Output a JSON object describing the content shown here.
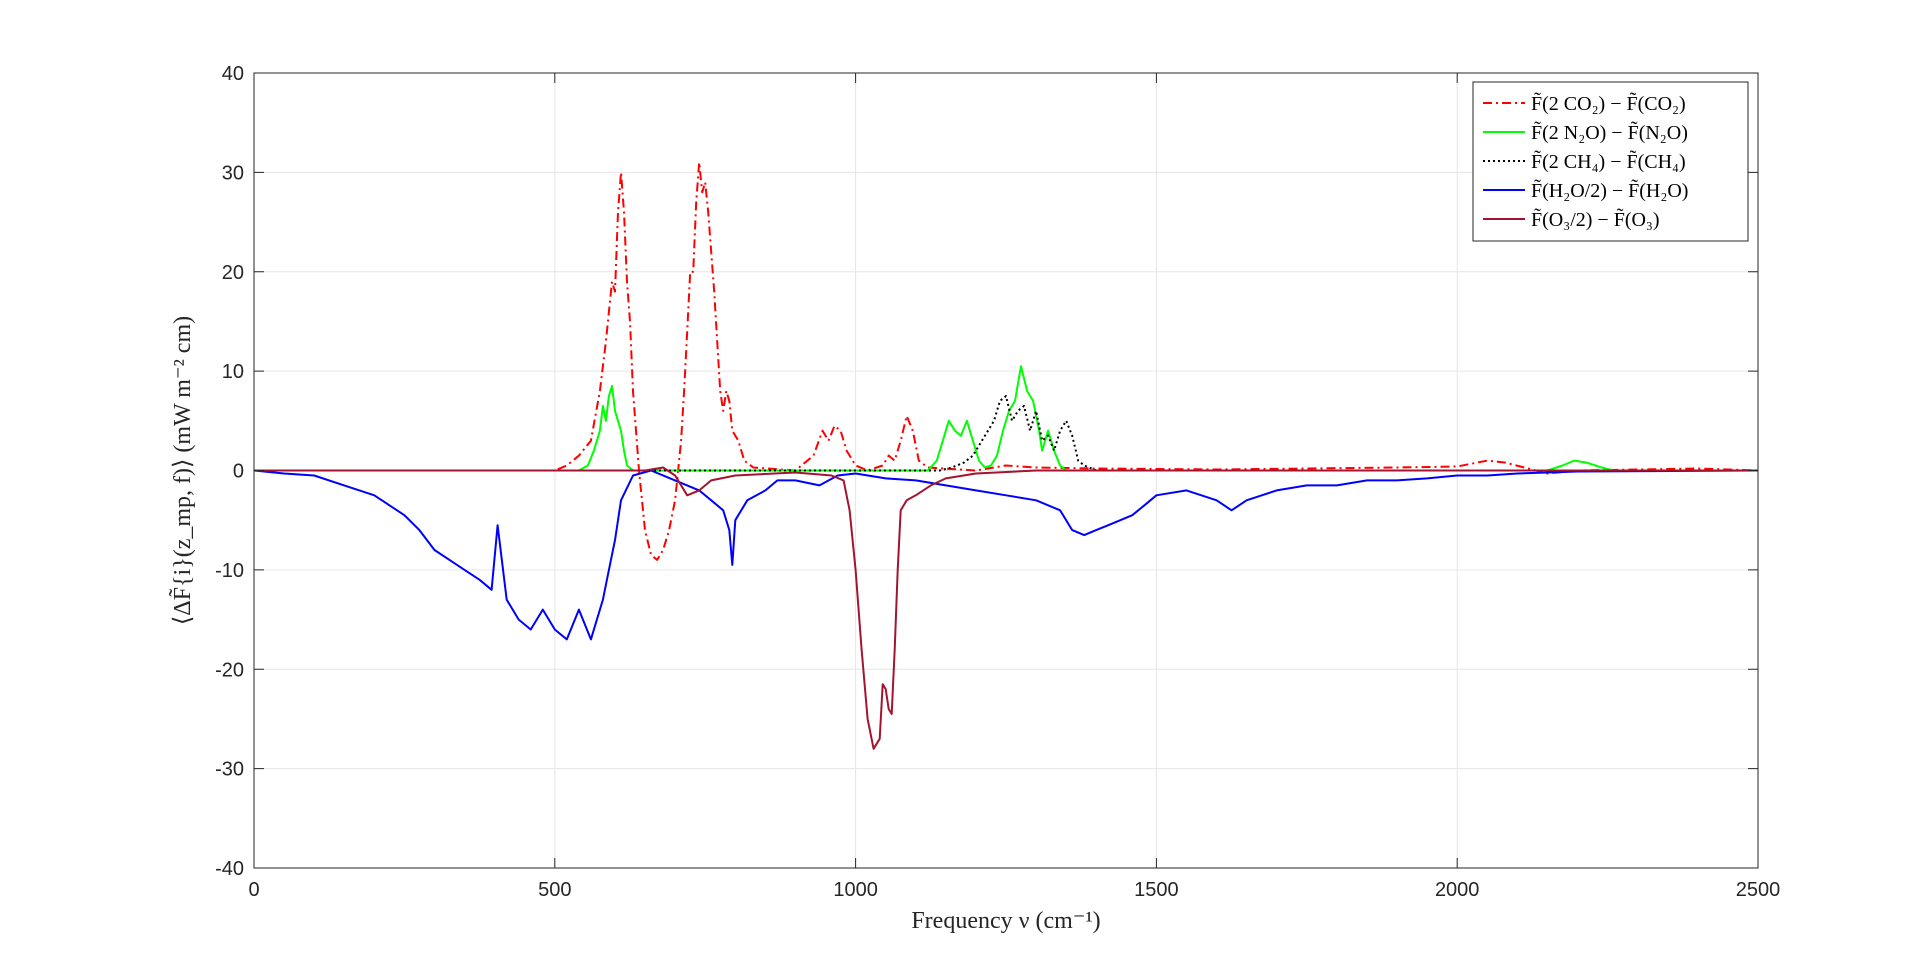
{
  "chart_data": {
    "type": "line",
    "xlabel": "Frequency ν (cm⁻¹)",
    "ylabel": "⟨ΔF̃{i}(z_mp, f)⟩   (mW m⁻² cm)",
    "xlim": [
      0,
      2500
    ],
    "ylim": [
      -40,
      40
    ],
    "xticks": [
      0,
      500,
      1000,
      1500,
      2000,
      2500
    ],
    "yticks": [
      -40,
      -30,
      -20,
      -10,
      0,
      10,
      20,
      30,
      40
    ],
    "xtick_labels": [
      "0",
      "500",
      "1000",
      "1500",
      "2000",
      "2500"
    ],
    "ytick_labels": [
      "-40",
      "-30",
      "-20",
      "-10",
      "0",
      "10",
      "20",
      "30",
      "40"
    ],
    "grid": true,
    "legend_position": "top-right",
    "series": [
      {
        "name": "F̃(2 CO₂) − F̃(CO₂)",
        "color": "#ff0000",
        "dash": "dash-dot",
        "points": [
          [
            0,
            0
          ],
          [
            500,
            0
          ],
          [
            520,
            0.5
          ],
          [
            540,
            1.5
          ],
          [
            560,
            3
          ],
          [
            575,
            8
          ],
          [
            585,
            13
          ],
          [
            595,
            19
          ],
          [
            600,
            18
          ],
          [
            605,
            26
          ],
          [
            610,
            30
          ],
          [
            615,
            26
          ],
          [
            620,
            19
          ],
          [
            625,
            15
          ],
          [
            630,
            8
          ],
          [
            640,
            0
          ],
          [
            650,
            -6
          ],
          [
            660,
            -8.5
          ],
          [
            670,
            -9
          ],
          [
            680,
            -8
          ],
          [
            690,
            -6
          ],
          [
            700,
            -3
          ],
          [
            710,
            3
          ],
          [
            715,
            8
          ],
          [
            720,
            14
          ],
          [
            725,
            20
          ],
          [
            730,
            20
          ],
          [
            735,
            27
          ],
          [
            740,
            31
          ],
          [
            745,
            28
          ],
          [
            750,
            29
          ],
          [
            755,
            26
          ],
          [
            760,
            22
          ],
          [
            765,
            18
          ],
          [
            770,
            13
          ],
          [
            775,
            8
          ],
          [
            780,
            6
          ],
          [
            785,
            8
          ],
          [
            790,
            7
          ],
          [
            795,
            4
          ],
          [
            805,
            3
          ],
          [
            815,
            1
          ],
          [
            830,
            0.3
          ],
          [
            900,
            0
          ],
          [
            930,
            1.5
          ],
          [
            945,
            4
          ],
          [
            955,
            3
          ],
          [
            965,
            4.5
          ],
          [
            975,
            4
          ],
          [
            985,
            2
          ],
          [
            1000,
            0.5
          ],
          [
            1020,
            0
          ],
          [
            1045,
            0.5
          ],
          [
            1055,
            1.5
          ],
          [
            1065,
            1
          ],
          [
            1075,
            3
          ],
          [
            1085,
            5.5
          ],
          [
            1095,
            4
          ],
          [
            1105,
            1
          ],
          [
            1120,
            0.3
          ],
          [
            1200,
            0
          ],
          [
            1250,
            0.5
          ],
          [
            1300,
            0.3
          ],
          [
            1400,
            0.2
          ],
          [
            1600,
            0.1
          ],
          [
            1900,
            0.3
          ],
          [
            2000,
            0.4
          ],
          [
            2050,
            1
          ],
          [
            2080,
            0.8
          ],
          [
            2150,
            -0.3
          ],
          [
            2200,
            0
          ],
          [
            2400,
            0.2
          ],
          [
            2500,
            0
          ]
        ]
      },
      {
        "name": "F̃(2 N₂O) − F̃(N₂O)",
        "color": "#00ff00",
        "dash": "solid",
        "points": [
          [
            0,
            0
          ],
          [
            540,
            0
          ],
          [
            555,
            0.5
          ],
          [
            565,
            2
          ],
          [
            575,
            4
          ],
          [
            580,
            6.5
          ],
          [
            585,
            5
          ],
          [
            590,
            7.5
          ],
          [
            595,
            8.5
          ],
          [
            600,
            6
          ],
          [
            610,
            4
          ],
          [
            615,
            2
          ],
          [
            620,
            0.5
          ],
          [
            630,
            0
          ],
          [
            1120,
            0
          ],
          [
            1135,
            1
          ],
          [
            1145,
            3
          ],
          [
            1155,
            5
          ],
          [
            1165,
            4
          ],
          [
            1175,
            3.5
          ],
          [
            1185,
            5
          ],
          [
            1195,
            3
          ],
          [
            1205,
            1
          ],
          [
            1215,
            0.3
          ],
          [
            1225,
            0.5
          ],
          [
            1235,
            1.5
          ],
          [
            1245,
            4
          ],
          [
            1255,
            6
          ],
          [
            1265,
            7
          ],
          [
            1275,
            10.5
          ],
          [
            1285,
            8
          ],
          [
            1295,
            7
          ],
          [
            1305,
            4
          ],
          [
            1310,
            2
          ],
          [
            1320,
            4
          ],
          [
            1330,
            2
          ],
          [
            1340,
            0.5
          ],
          [
            1350,
            0
          ],
          [
            2150,
            0
          ],
          [
            2175,
            0.5
          ],
          [
            2195,
            1
          ],
          [
            2215,
            0.8
          ],
          [
            2240,
            0.3
          ],
          [
            2260,
            0
          ],
          [
            2500,
            0
          ]
        ]
      },
      {
        "name": "F̃(2 CH₄) − F̃(CH₄)",
        "color": "#000000",
        "dash": "dotted",
        "points": [
          [
            0,
            0
          ],
          [
            1140,
            0
          ],
          [
            1160,
            0.3
          ],
          [
            1180,
            0.8
          ],
          [
            1195,
            1.5
          ],
          [
            1210,
            3
          ],
          [
            1220,
            4
          ],
          [
            1230,
            5
          ],
          [
            1240,
            7
          ],
          [
            1250,
            7.5
          ],
          [
            1260,
            5
          ],
          [
            1270,
            6
          ],
          [
            1280,
            6.5
          ],
          [
            1290,
            4
          ],
          [
            1300,
            6
          ],
          [
            1310,
            3
          ],
          [
            1320,
            3.5
          ],
          [
            1330,
            2
          ],
          [
            1340,
            4
          ],
          [
            1350,
            5
          ],
          [
            1360,
            3.5
          ],
          [
            1370,
            1
          ],
          [
            1380,
            0.5
          ],
          [
            1400,
            0
          ],
          [
            2500,
            0
          ]
        ]
      },
      {
        "name": "F̃(H₂O/2) − F̃(H₂O)",
        "color": "#0000ff",
        "dash": "solid",
        "points": [
          [
            0,
            0
          ],
          [
            50,
            -0.3
          ],
          [
            100,
            -0.5
          ],
          [
            150,
            -1.5
          ],
          [
            200,
            -2.5
          ],
          [
            225,
            -3.5
          ],
          [
            250,
            -4.5
          ],
          [
            275,
            -6
          ],
          [
            300,
            -8
          ],
          [
            325,
            -9
          ],
          [
            350,
            -10
          ],
          [
            375,
            -11
          ],
          [
            395,
            -12
          ],
          [
            405,
            -5.5
          ],
          [
            420,
            -13
          ],
          [
            440,
            -15
          ],
          [
            460,
            -16
          ],
          [
            480,
            -14
          ],
          [
            500,
            -16
          ],
          [
            520,
            -17
          ],
          [
            540,
            -14
          ],
          [
            560,
            -17
          ],
          [
            570,
            -15
          ],
          [
            580,
            -13
          ],
          [
            590,
            -10
          ],
          [
            600,
            -7
          ],
          [
            610,
            -3
          ],
          [
            630,
            -0.5
          ],
          [
            660,
            0
          ],
          [
            700,
            -1
          ],
          [
            720,
            -1.5
          ],
          [
            740,
            -2
          ],
          [
            760,
            -3
          ],
          [
            780,
            -4
          ],
          [
            790,
            -6
          ],
          [
            795,
            -9.5
          ],
          [
            800,
            -5
          ],
          [
            820,
            -3
          ],
          [
            850,
            -2
          ],
          [
            870,
            -1
          ],
          [
            900,
            -1
          ],
          [
            940,
            -1.5
          ],
          [
            970,
            -0.5
          ],
          [
            1000,
            -0.3
          ],
          [
            1050,
            -0.8
          ],
          [
            1100,
            -1
          ],
          [
            1150,
            -1.5
          ],
          [
            1200,
            -2
          ],
          [
            1250,
            -2.5
          ],
          [
            1300,
            -3
          ],
          [
            1340,
            -4
          ],
          [
            1360,
            -6
          ],
          [
            1380,
            -6.5
          ],
          [
            1400,
            -6
          ],
          [
            1420,
            -5.5
          ],
          [
            1440,
            -5
          ],
          [
            1460,
            -4.5
          ],
          [
            1480,
            -3.5
          ],
          [
            1500,
            -2.5
          ],
          [
            1550,
            -2
          ],
          [
            1600,
            -3
          ],
          [
            1625,
            -4
          ],
          [
            1650,
            -3
          ],
          [
            1700,
            -2
          ],
          [
            1750,
            -1.5
          ],
          [
            1800,
            -1.5
          ],
          [
            1850,
            -1
          ],
          [
            1900,
            -1
          ],
          [
            1950,
            -0.8
          ],
          [
            2000,
            -0.5
          ],
          [
            2050,
            -0.5
          ],
          [
            2100,
            -0.3
          ],
          [
            2150,
            -0.2
          ],
          [
            2200,
            -0.1
          ],
          [
            2500,
            0
          ]
        ]
      },
      {
        "name": "F̃(O₃/2) − F̃(O₃)",
        "color": "#a2142f",
        "dash": "solid",
        "points": [
          [
            0,
            0
          ],
          [
            650,
            0
          ],
          [
            680,
            0.3
          ],
          [
            700,
            -0.5
          ],
          [
            720,
            -2.5
          ],
          [
            740,
            -2
          ],
          [
            760,
            -1
          ],
          [
            800,
            -0.5
          ],
          [
            900,
            -0.2
          ],
          [
            960,
            -0.5
          ],
          [
            980,
            -1
          ],
          [
            990,
            -4
          ],
          [
            1000,
            -10
          ],
          [
            1010,
            -18
          ],
          [
            1020,
            -25
          ],
          [
            1030,
            -28
          ],
          [
            1040,
            -27
          ],
          [
            1045,
            -21.5
          ],
          [
            1050,
            -22
          ],
          [
            1055,
            -24
          ],
          [
            1060,
            -24.5
          ],
          [
            1065,
            -18
          ],
          [
            1070,
            -10
          ],
          [
            1075,
            -4
          ],
          [
            1085,
            -3
          ],
          [
            1100,
            -2.5
          ],
          [
            1125,
            -1.5
          ],
          [
            1150,
            -0.8
          ],
          [
            1200,
            -0.3
          ],
          [
            1300,
            0
          ],
          [
            2500,
            0
          ]
        ]
      }
    ]
  }
}
